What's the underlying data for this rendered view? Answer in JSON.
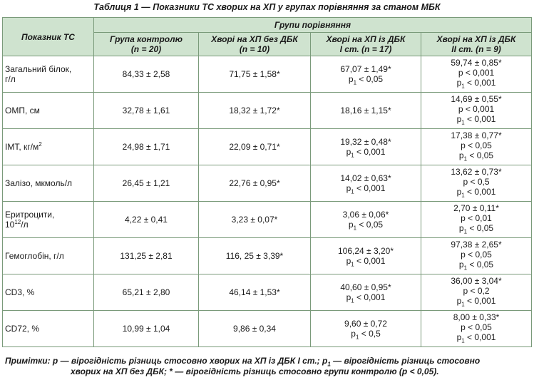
{
  "title": "Таблиця 1 — Показники ТС хворих на ХП у групах порівняння за станом МБК",
  "headers": {
    "indicator": "Показник ТС",
    "groups": "Групи порівняння",
    "control": [
      "Група контролю",
      "(n = 20)"
    ],
    "no_dbk": [
      "Хворі на ХП без ДБК",
      "(n = 10)"
    ],
    "dbk1": [
      "Хворі на ХП із ДБК",
      "І ст. (n = 17)"
    ],
    "dbk2": [
      "Хворі на ХП із ДБК",
      "ІІ ст. (n = 9)"
    ]
  },
  "rows": [
    {
      "name": [
        "Загальний білок,",
        "г/л"
      ],
      "control": "84,33 ± 2,58",
      "no_dbk": "71,75 ± 1,58*",
      "dbk1": [
        "67,07 ± 1,49*",
        "p",
        "1",
        " < 0,05"
      ],
      "dbk2": [
        "59,74 ± 0,85*",
        "p < 0,001",
        "p",
        "1",
        " < 0,001"
      ]
    },
    {
      "name": [
        "ОМП, см"
      ],
      "control": "32,78 ± 1,61",
      "no_dbk": "18,32 ± 1,72*",
      "dbk1": [
        "18,16 ± 1,15*"
      ],
      "dbk2": [
        "14,69 ± 0,55*",
        "p < 0,001",
        "p",
        "1",
        " < 0,001"
      ]
    },
    {
      "name": [
        "ІМТ, кг/м",
        "2"
      ],
      "control": "24,98 ± 1,71",
      "no_dbk": "22,09 ± 0,71*",
      "dbk1": [
        "19,32 ± 0,48*",
        "p",
        "1",
        " < 0,001"
      ],
      "dbk2": [
        "17,38 ± 0,77*",
        "p < 0,05",
        "p",
        "1",
        " < 0,05"
      ]
    },
    {
      "name": [
        "Залізо, мкмоль/л"
      ],
      "control": "26,45 ± 1,21",
      "no_dbk": "22,76 ± 0,95*",
      "dbk1": [
        "14,02 ± 0,63*",
        "p",
        "1",
        " < 0,001"
      ],
      "dbk2": [
        "13,62 ± 0,73*",
        "p < 0,5",
        "p",
        "1",
        " < 0,001"
      ]
    },
    {
      "name": [
        "Еритроцити,",
        "10",
        "12",
        "/л"
      ],
      "control": "4,22 ± 0,41",
      "no_dbk": "3,23 ± 0,07*",
      "dbk1": [
        "3,06 ± 0,06*",
        "p",
        "1",
        " < 0,05"
      ],
      "dbk2": [
        "2,70 ± 0,11*",
        "p < 0,01",
        "p",
        "1",
        " < 0,05"
      ]
    },
    {
      "name": [
        "Гемоглобін, г/л"
      ],
      "control": "131,25 ± 2,81",
      "no_dbk": "116, 25 ± 3,39*",
      "dbk1": [
        "106,24 ± 3,20*",
        "p",
        "1",
        " < 0,001"
      ],
      "dbk2": [
        "97,38 ± 2,65*",
        "p < 0,05",
        "p",
        "1",
        " < 0,05"
      ]
    },
    {
      "name": [
        "CD3, %"
      ],
      "control": "65,21 ± 2,80",
      "no_dbk": "46,14 ± 1,53*",
      "dbk1": [
        "40,60 ± 0,95*",
        "p",
        "1",
        " < 0,001"
      ],
      "dbk2": [
        "36,00 ± 3,04*",
        "p < 0,2",
        "p",
        "1",
        " < 0,001"
      ]
    },
    {
      "name": [
        "CD72, %"
      ],
      "control": "10,99 ± 1,04",
      "no_dbk": "9,86 ± 0,34",
      "dbk1": [
        "9,60 ± 0,72",
        "p",
        "1",
        " < 0,5"
      ],
      "dbk2": [
        "8,00 ± 0,33*",
        "p < 0,05",
        "p",
        "1",
        " < 0,001"
      ]
    }
  ],
  "notes": {
    "label": "Примітки:",
    "t1": " p — вірогідність різниць стосовно хворих на ХП із ДБК І ст.; p",
    "sub": "1",
    "t2": " — вірогідність різниць стосовно",
    "line2": "хворих на ХП без ДБК; * — вірогідність різниць стосовно групи контролю (p < 0,05)."
  }
}
